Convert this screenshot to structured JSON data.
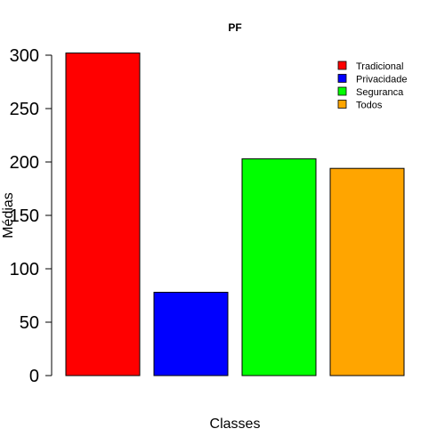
{
  "chart_data": {
    "type": "bar",
    "title": "PF",
    "xlabel": "Classes",
    "ylabel": "Médias",
    "categories": [
      "Tradicional",
      "Privacidade",
      "Seguranca",
      "Todos"
    ],
    "values": [
      302,
      78,
      203,
      194
    ],
    "colors": [
      "#ff0000",
      "#0000ff",
      "#00ff00",
      "#ffa500"
    ],
    "ylim": [
      0,
      300
    ],
    "yticks": [
      0,
      50,
      100,
      150,
      200,
      250,
      300
    ],
    "ytick_labels": [
      "0",
      "50",
      "100",
      "150",
      "200",
      "250",
      "300"
    ],
    "legend": {
      "placement": "top-right",
      "entries": [
        "Tradicional",
        "Privacidade",
        "Seguranca",
        "Todos"
      ]
    },
    "grid": false
  }
}
